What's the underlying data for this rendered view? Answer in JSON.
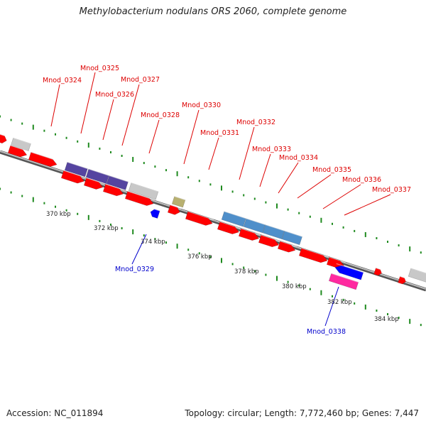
{
  "header": {
    "title": "Methylobacterium nodulans ORS 2060, complete genome"
  },
  "footer": {
    "accession": "Accession: NC_011894",
    "summary": "Topology: circular; Length: 7,772,460 bp; Genes: 7,447"
  },
  "colors": {
    "backbone": "#8c8c8c",
    "gene_red": "#ff0000",
    "gene_gray": "#c8c8c8",
    "gene_purple": "#5544a0",
    "gene_steelblue": "#4f8fca",
    "gene_olive": "#b8b070",
    "gene_blue": "#0000ff",
    "gene_magenta": "#ff2aa0",
    "tick_green": "#1f8a1f",
    "label_red": "#dd0000",
    "label_blue": "#0000cc"
  },
  "scale_ticks": [
    "370 kbp",
    "372 kbp",
    "374 kbp",
    "376 kbp",
    "378 kbp",
    "380 kbp",
    "382 kbp",
    "384 kbp"
  ],
  "gene_labels": [
    {
      "text": "Mnod_0324",
      "color": "red"
    },
    {
      "text": "Mnod_0325",
      "color": "red"
    },
    {
      "text": "Mnod_0326",
      "color": "red"
    },
    {
      "text": "Mnod_0327",
      "color": "red"
    },
    {
      "text": "Mnod_0328",
      "color": "red"
    },
    {
      "text": "Mnod_0329",
      "color": "blue"
    },
    {
      "text": "Mnod_0330",
      "color": "red"
    },
    {
      "text": "Mnod_0331",
      "color": "red"
    },
    {
      "text": "Mnod_0332",
      "color": "red"
    },
    {
      "text": "Mnod_0333",
      "color": "red"
    },
    {
      "text": "Mnod_0334",
      "color": "red"
    },
    {
      "text": "Mnod_0335",
      "color": "red"
    },
    {
      "text": "Mnod_0336",
      "color": "red"
    },
    {
      "text": "Mnod_0337",
      "color": "red"
    },
    {
      "text": "Mnod_0338",
      "color": "blue"
    }
  ]
}
